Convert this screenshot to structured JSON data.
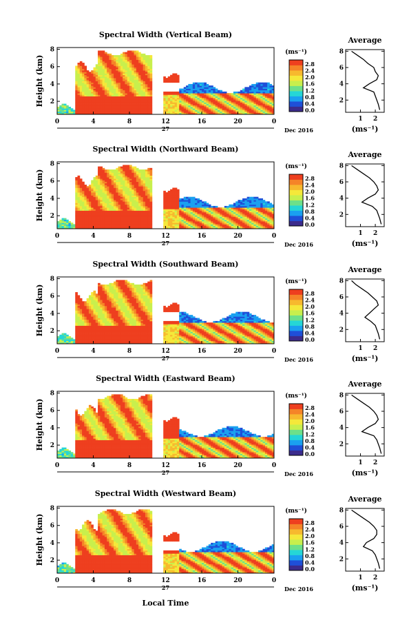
{
  "chart_data": {
    "type": "heatmap",
    "x_axis_label": "Local Time",
    "x_ticks": [
      "0",
      "4",
      "8",
      "12",
      "16",
      "20",
      "0"
    ],
    "x_range": [
      0,
      24
    ],
    "day_label": "27",
    "date_label": "Dec 2016",
    "y_axis_label": "Height (km)",
    "y_ticks": [
      "2",
      "4",
      "6",
      "8"
    ],
    "y_range": [
      0.5,
      8.2
    ],
    "colorbar": {
      "unit_label": "(ms⁻¹)",
      "ticks": [
        "2.8",
        "2.4",
        "2.0",
        "1.6",
        "1.2",
        "0.8",
        "0.4",
        "0.0"
      ],
      "range": [
        0,
        2.8
      ],
      "colors": [
        "#3b2b8c",
        "#1f4fd8",
        "#1aa0f0",
        "#25d6d6",
        "#6de08a",
        "#c8ef4d",
        "#f5e83a",
        "#f7b92e",
        "#f58428",
        "#ee3f1f"
      ]
    },
    "average_panel": {
      "title": "Average",
      "x_ticks": [
        "1",
        "2"
      ],
      "x_label": "(ms⁻¹)",
      "y_ticks": [
        "2",
        "4",
        "6",
        "8"
      ]
    },
    "panels": [
      {
        "title": "Spectral Width (Vertical Beam)",
        "avg_x_ticks": [
          "1",
          "2"
        ],
        "average_profile": [
          [
            2.3,
            0.8
          ],
          [
            2.2,
            1.5
          ],
          [
            2.0,
            2.5
          ],
          [
            1.9,
            3.0
          ],
          [
            1.2,
            3.5
          ],
          [
            1.6,
            4.0
          ],
          [
            2.1,
            4.5
          ],
          [
            2.2,
            5.0
          ],
          [
            2.0,
            5.5
          ],
          [
            1.9,
            6.0
          ],
          [
            1.5,
            6.5
          ],
          [
            1.2,
            7.0
          ],
          [
            0.8,
            7.5
          ],
          [
            0.4,
            8.0
          ]
        ]
      },
      {
        "title": "Spectral Width (Northward Beam)",
        "avg_x_ticks": [
          "1",
          "2"
        ],
        "average_profile": [
          [
            2.4,
            0.8
          ],
          [
            2.3,
            1.5
          ],
          [
            2.1,
            2.5
          ],
          [
            1.8,
            3.0
          ],
          [
            1.1,
            3.5
          ],
          [
            1.5,
            4.0
          ],
          [
            2.0,
            4.5
          ],
          [
            2.2,
            5.0
          ],
          [
            2.1,
            5.5
          ],
          [
            1.9,
            6.0
          ],
          [
            1.6,
            6.5
          ],
          [
            1.2,
            7.0
          ],
          [
            0.8,
            7.5
          ],
          [
            0.4,
            8.0
          ]
        ]
      },
      {
        "title": "Spectral Width (Southward Beam)",
        "avg_x_ticks": [
          "1",
          "2"
        ],
        "average_profile": [
          [
            2.3,
            0.8
          ],
          [
            2.2,
            1.5
          ],
          [
            2.0,
            2.5
          ],
          [
            1.7,
            3.0
          ],
          [
            1.3,
            3.5
          ],
          [
            1.6,
            4.0
          ],
          [
            1.9,
            4.5
          ],
          [
            2.2,
            5.0
          ],
          [
            2.1,
            5.5
          ],
          [
            1.8,
            6.0
          ],
          [
            1.5,
            6.5
          ],
          [
            1.1,
            7.0
          ],
          [
            0.7,
            7.5
          ],
          [
            0.4,
            8.0
          ]
        ]
      },
      {
        "title": "Spectral Width (Eastward Beam)",
        "avg_x_ticks": [
          "1",
          "2"
        ],
        "average_profile": [
          [
            2.4,
            0.8
          ],
          [
            2.3,
            1.5
          ],
          [
            2.1,
            2.5
          ],
          [
            1.9,
            3.0
          ],
          [
            1.1,
            3.5
          ],
          [
            1.5,
            4.0
          ],
          [
            2.0,
            4.5
          ],
          [
            2.2,
            5.0
          ],
          [
            2.1,
            5.5
          ],
          [
            1.9,
            6.0
          ],
          [
            1.6,
            6.5
          ],
          [
            1.2,
            7.0
          ],
          [
            0.8,
            7.5
          ],
          [
            0.4,
            8.0
          ]
        ]
      },
      {
        "title": "Spectral Width (Westward Beam)",
        "avg_x_ticks": [
          "1",
          "2"
        ],
        "average_profile": [
          [
            2.3,
            0.8
          ],
          [
            2.2,
            1.5
          ],
          [
            2.0,
            2.5
          ],
          [
            1.8,
            3.0
          ],
          [
            1.2,
            3.5
          ],
          [
            1.4,
            4.0
          ],
          [
            1.9,
            4.5
          ],
          [
            2.1,
            5.0
          ],
          [
            2.1,
            5.5
          ],
          [
            1.9,
            6.0
          ],
          [
            1.6,
            6.5
          ],
          [
            1.2,
            7.0
          ],
          [
            0.8,
            7.5
          ],
          [
            0.4,
            8.0
          ]
        ]
      }
    ]
  }
}
